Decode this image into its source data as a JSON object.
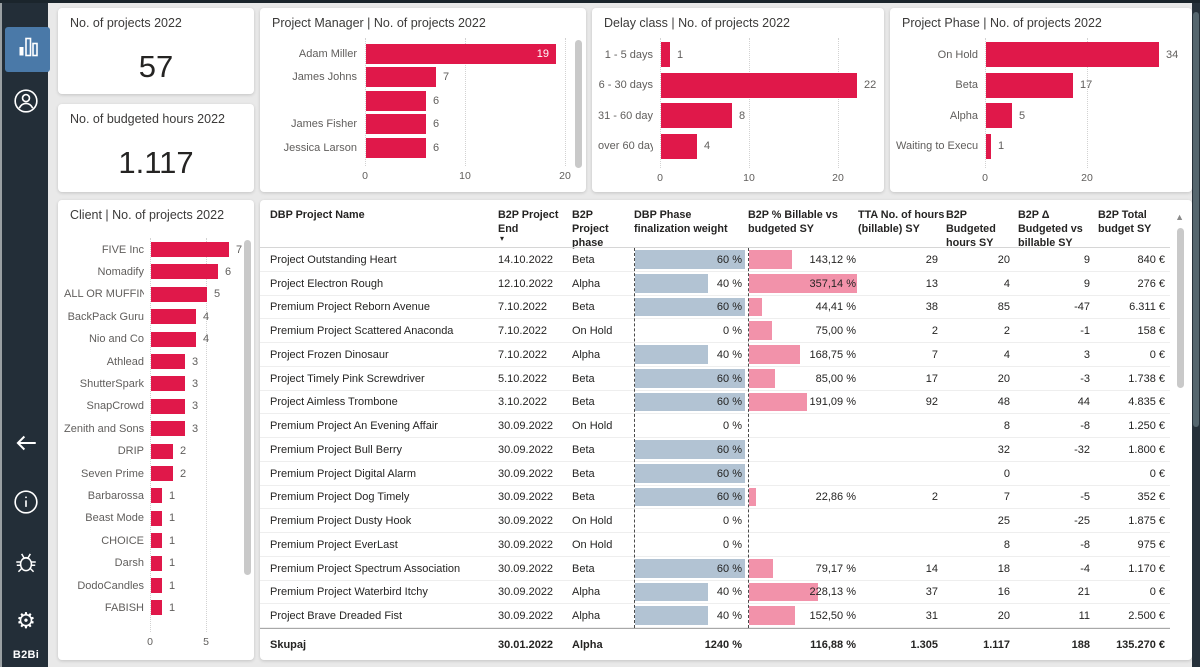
{
  "window": {
    "logo": "B2Bi"
  },
  "sidebar": {
    "items": [
      {
        "name": "dashboard",
        "icon": "bar-chart-icon",
        "active": true
      },
      {
        "name": "account",
        "icon": "account-icon"
      },
      {
        "name": "back",
        "icon": "arrow-left-icon"
      },
      {
        "name": "info",
        "icon": "info-icon"
      },
      {
        "name": "debug",
        "icon": "bug-icon"
      },
      {
        "name": "settings",
        "icon": "gear-icon"
      }
    ]
  },
  "kpis": [
    {
      "title": "No. of projects 2022",
      "value": "57"
    },
    {
      "title": "No. of budgeted hours 2022",
      "value": "1.117"
    }
  ],
  "chart_data": [
    {
      "id": "project_manager",
      "type": "bar",
      "orientation": "horizontal",
      "title": "Project Manager | No. of projects 2022",
      "categories": [
        "Adam Miller",
        "James Johns",
        "",
        "James Fisher",
        "Jessica Larson"
      ],
      "values": [
        19,
        7,
        6,
        6,
        6
      ],
      "xticks": [
        0,
        10,
        20
      ],
      "xlim": [
        0,
        20
      ],
      "grid": "dotted",
      "scrollbar": true
    },
    {
      "id": "delay_class",
      "type": "bar",
      "orientation": "horizontal",
      "title": "Delay class | No. of projects 2022",
      "categories": [
        "1 - 5 days",
        "6 - 30 days",
        "31 - 60 days",
        "over 60 days"
      ],
      "values": [
        1,
        22,
        8,
        4
      ],
      "xticks": [
        0,
        10,
        20
      ],
      "xlim": [
        0,
        25
      ],
      "grid": "dotted",
      "scrollbar": false
    },
    {
      "id": "project_phase",
      "type": "bar",
      "orientation": "horizontal",
      "title": "Project Phase | No. of projects 2022",
      "categories": [
        "On Hold",
        "Beta",
        "Alpha",
        "Waiting to Execute"
      ],
      "values": [
        34,
        17,
        5,
        1
      ],
      "xticks": [
        0,
        20
      ],
      "xlim": [
        0,
        40
      ],
      "grid": "dotted",
      "scrollbar": false
    },
    {
      "id": "client",
      "type": "bar",
      "orientation": "horizontal",
      "title": "Client | No. of projects 2022",
      "categories": [
        "FIVE Inc",
        "Nomadify",
        "ALL OR MUFFIN",
        "BackPack Guru",
        "Nio and Co",
        "Athlead",
        "ShutterSpark",
        "SnapCrowd",
        "Zenith and Sons",
        "DRIP",
        "Seven Prime",
        "Barbarossa",
        "Beast Mode",
        "CHOICE",
        "Darsh",
        "DodoCandles",
        "FABISH"
      ],
      "values": [
        7,
        6,
        5,
        4,
        4,
        3,
        3,
        3,
        3,
        2,
        2,
        1,
        1,
        1,
        1,
        1,
        1
      ],
      "xticks": [
        0,
        5
      ],
      "xlim": [
        0,
        8
      ],
      "grid": "dotted",
      "scrollbar": true
    }
  ],
  "table": {
    "columns": [
      "DBP Project Name",
      "B2P Project End",
      "B2P Project phase",
      "DBP Phase finalization weight",
      "B2P % Billable vs budgeted SY",
      "TTA No. of hours (billable) SY",
      "B2P Budgeted hours SY",
      "B2P Δ Budgeted vs billable SY",
      "B2P Total budget SY"
    ],
    "sorted_column": "B2P Project End",
    "rows": [
      {
        "name": "Project Outstanding Heart",
        "end": "14.10.2022",
        "phase": "Beta",
        "weight": "60 %",
        "billable": "143,12 %",
        "tta": "29",
        "hours": "20",
        "delta": "9",
        "total": "840 €"
      },
      {
        "name": "Project Electron Rough",
        "end": "12.10.2022",
        "phase": "Alpha",
        "weight": "40 %",
        "billable": "357,14 %",
        "tta": "13",
        "hours": "4",
        "delta": "9",
        "total": "276 €"
      },
      {
        "name": "Premium Project Reborn Avenue",
        "end": "7.10.2022",
        "phase": "Beta",
        "weight": "60 %",
        "billable": "44,41 %",
        "tta": "38",
        "hours": "85",
        "delta": "-47",
        "total": "6.311 €"
      },
      {
        "name": "Premium Project Scattered Anaconda",
        "end": "7.10.2022",
        "phase": "On Hold",
        "weight": "0 %",
        "billable": "75,00 %",
        "tta": "2",
        "hours": "2",
        "delta": "-1",
        "total": "158 €"
      },
      {
        "name": "Project Frozen Dinosaur",
        "end": "7.10.2022",
        "phase": "Alpha",
        "weight": "40 %",
        "billable": "168,75 %",
        "tta": "7",
        "hours": "4",
        "delta": "3",
        "total": "0 €"
      },
      {
        "name": "Project Timely Pink Screwdriver",
        "end": "5.10.2022",
        "phase": "Beta",
        "weight": "60 %",
        "billable": "85,00 %",
        "tta": "17",
        "hours": "20",
        "delta": "-3",
        "total": "1.738 €"
      },
      {
        "name": "Project Aimless Trombone",
        "end": "3.10.2022",
        "phase": "Beta",
        "weight": "60 %",
        "billable": "191,09 %",
        "tta": "92",
        "hours": "48",
        "delta": "44",
        "total": "4.835 €"
      },
      {
        "name": "Premium Project An Evening Affair",
        "end": "30.09.2022",
        "phase": "On Hold",
        "weight": "0 %",
        "billable": "",
        "tta": "",
        "hours": "8",
        "delta": "-8",
        "total": "1.250 €"
      },
      {
        "name": "Premium Project Bull Berry",
        "end": "30.09.2022",
        "phase": "Beta",
        "weight": "60 %",
        "billable": "",
        "tta": "",
        "hours": "32",
        "delta": "-32",
        "total": "1.800 €"
      },
      {
        "name": "Premium Project Digital Alarm",
        "end": "30.09.2022",
        "phase": "Beta",
        "weight": "60 %",
        "billable": "",
        "tta": "",
        "hours": "0",
        "delta": "",
        "total": "0 €"
      },
      {
        "name": "Premium Project Dog Timely",
        "end": "30.09.2022",
        "phase": "Beta",
        "weight": "60 %",
        "billable": "22,86 %",
        "tta": "2",
        "hours": "7",
        "delta": "-5",
        "total": "352 €"
      },
      {
        "name": "Premium Project Dusty Hook",
        "end": "30.09.2022",
        "phase": "On Hold",
        "weight": "0 %",
        "billable": "",
        "tta": "",
        "hours": "25",
        "delta": "-25",
        "total": "1.875 €"
      },
      {
        "name": "Premium Project EverLast",
        "end": "30.09.2022",
        "phase": "On Hold",
        "weight": "0 %",
        "billable": "",
        "tta": "",
        "hours": "8",
        "delta": "-8",
        "total": "975 €"
      },
      {
        "name": "Premium Project Spectrum Association",
        "end": "30.09.2022",
        "phase": "Beta",
        "weight": "60 %",
        "billable": "79,17 %",
        "tta": "14",
        "hours": "18",
        "delta": "-4",
        "total": "1.170 €"
      },
      {
        "name": "Premium Project Waterbird Itchy",
        "end": "30.09.2022",
        "phase": "Alpha",
        "weight": "40 %",
        "billable": "228,13 %",
        "tta": "37",
        "hours": "16",
        "delta": "21",
        "total": "0 €"
      },
      {
        "name": "Project Brave Dreaded Fist",
        "end": "30.09.2022",
        "phase": "Alpha",
        "weight": "40 %",
        "billable": "152,50 %",
        "tta": "31",
        "hours": "20",
        "delta": "11",
        "total": "2.500 €"
      }
    ],
    "total": {
      "name": "Skupaj",
      "end": "30.01.2022",
      "phase": "Alpha",
      "weight": "1240 %",
      "billable": "116,88 %",
      "tta": "1.305",
      "hours": "1.117",
      "delta": "188",
      "total": "135.270 €"
    }
  },
  "colors": {
    "accent": "#e0184a",
    "weight_bar": "#b2c3d3",
    "billable_bar": "#f292aa",
    "sidebar": "#232e38",
    "sidebar_active": "#4a79a8"
  }
}
